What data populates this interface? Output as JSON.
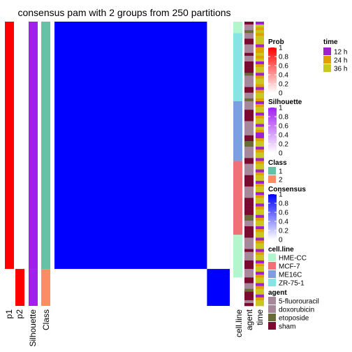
{
  "title": "consensus pam with 2 groups from 250 partitions",
  "columns": {
    "p1": "p1",
    "p2": "p2",
    "silhouette": "Silhouette",
    "class": "Class",
    "cell_line": "cell.line",
    "agent": "agent",
    "time": "time"
  },
  "legends": {
    "prob": {
      "title": "Prob",
      "ticks": [
        "1",
        "0.8",
        "0.6",
        "0.4",
        "0.2",
        "0"
      ],
      "low_color": "#ffffff",
      "high_color": "#ff0000"
    },
    "silhouette": {
      "title": "Silhouette",
      "ticks": [
        "1",
        "0.8",
        "0.6",
        "0.4",
        "0.2",
        "0"
      ],
      "low_color": "#ffffff",
      "high_color": "#a020f0"
    },
    "class": {
      "title": "Class",
      "items": [
        {
          "label": "1",
          "color": "#66c2a5"
        },
        {
          "label": "2",
          "color": "#fc8d62"
        }
      ]
    },
    "consensus": {
      "title": "Consensus",
      "ticks": [
        "1",
        "0.8",
        "0.6",
        "0.4",
        "0.2",
        "0"
      ],
      "low_color": "#ffffff",
      "high_color": "#0000ff"
    },
    "cell_line": {
      "title": "cell.line",
      "items": [
        {
          "label": "HME-CC",
          "color": "#b3f5cc"
        },
        {
          "label": "MCF-7",
          "color": "#f07078"
        },
        {
          "label": "ME16C",
          "color": "#7b9fe0"
        },
        {
          "label": "ZR-75-1",
          "color": "#88e4e4"
        }
      ]
    },
    "agent": {
      "title": "agent",
      "items": [
        {
          "label": "5-fluorouracil",
          "color": "#a6889a"
        },
        {
          "label": "doxorubicin",
          "color": "#a6889a"
        },
        {
          "label": "etoposide",
          "color": "#6b6b3a"
        },
        {
          "label": "sham",
          "color": "#7a0a30"
        }
      ]
    },
    "time": {
      "title": "time",
      "items": [
        {
          "label": "12 h",
          "color": "#a020d0"
        },
        {
          "label": "24 h",
          "color": "#e0a000"
        },
        {
          "label": "36 h",
          "color": "#c8c820"
        }
      ]
    }
  },
  "chart_data": {
    "type": "heatmap",
    "title": "consensus pam with 2 groups from 250 partitions",
    "k": 2,
    "partitions": 250,
    "n_samples": 100,
    "class_sizes": {
      "1": 87,
      "2": 13
    },
    "sample_order_classes": "87 samples of class 1 followed by 13 samples of class 2",
    "p1_class1": 1.0,
    "p1_class2": 0.0,
    "p2_class1": 0.0,
    "p2_class2": 1.0,
    "silhouette_value": 1.0,
    "consensus_within_class1": 1.0,
    "consensus_within_class2": 1.0,
    "consensus_between_classes": 0.0,
    "cell_line_segments": [
      {
        "value": "HME-CC",
        "count": 4
      },
      {
        "value": "ZR-75-1",
        "count": 24
      },
      {
        "value": "ME16C",
        "count": 21
      },
      {
        "value": "MCF-7",
        "count": 26
      },
      {
        "value": "HME-CC",
        "count": 15
      }
    ],
    "agent_sequence": [
      "sham",
      "5-fluorouracil",
      "5-fluorouracil",
      "etoposide",
      "5-fluorouracil",
      "5-fluorouracil",
      "sham",
      "sham",
      "5-fluorouracil",
      "5-fluorouracil",
      "5-fluorouracil",
      "sham",
      "5-fluorouracil",
      "5-fluorouracil",
      "sham",
      "sham",
      "sham",
      "sham",
      "etoposide",
      "5-fluorouracil",
      "5-fluorouracil",
      "5-fluorouracil",
      "5-fluorouracil",
      "sham",
      "sham",
      "5-fluorouracil",
      "5-fluorouracil",
      "etoposide",
      "5-fluorouracil",
      "5-fluorouracil",
      "5-fluorouracil",
      "sham",
      "sham",
      "sham",
      "sham",
      "5-fluorouracil",
      "5-fluorouracil",
      "5-fluorouracil",
      "5-fluorouracil",
      "5-fluorouracil",
      "sham",
      "sham",
      "etoposide",
      "etoposide",
      "5-fluorouracil",
      "5-fluorouracil",
      "5-fluorouracil",
      "5-fluorouracil",
      "sham",
      "sham",
      "5-fluorouracil",
      "5-fluorouracil",
      "5-fluorouracil",
      "5-fluorouracil",
      "sham",
      "sham",
      "sham",
      "sham",
      "5-fluorouracil",
      "5-fluorouracil",
      "5-fluorouracil",
      "5-fluorouracil",
      "sham",
      "sham",
      "sham",
      "sham",
      "sham",
      "sham",
      "etoposide",
      "etoposide",
      "5-fluorouracil",
      "5-fluorouracil",
      "sham",
      "sham",
      "sham",
      "sham",
      "5-fluorouracil",
      "5-fluorouracil",
      "5-fluorouracil",
      "5-fluorouracil",
      "sham",
      "5-fluorouracil",
      "5-fluorouracil",
      "5-fluorouracil",
      "sham",
      "sham",
      "sham",
      "5-fluorouracil",
      "5-fluorouracil",
      "5-fluorouracil",
      "sham",
      "sham",
      "5-fluorouracil",
      "5-fluorouracil",
      "etoposide",
      "sham",
      "sham",
      "sham",
      "5-fluorouracil",
      "sham"
    ],
    "time_sequence": [
      "12 h",
      "36 h",
      "24 h",
      "36 h",
      "24 h",
      "36 h",
      "36 h",
      "36 h",
      "12 h",
      "24 h",
      "24 h",
      "36 h",
      "24 h",
      "36 h",
      "12 h",
      "24 h",
      "36 h",
      "36 h",
      "12 h",
      "24 h",
      "36 h",
      "36 h",
      "24 h",
      "12 h",
      "24 h",
      "36 h",
      "36 h",
      "24 h",
      "12 h",
      "24 h",
      "36 h",
      "36 h",
      "12 h",
      "24 h",
      "36 h",
      "36 h",
      "12 h",
      "36 h",
      "24 h",
      "12 h",
      "12 h",
      "24 h",
      "36 h",
      "36 h",
      "12 h",
      "24 h",
      "36 h",
      "36 h",
      "12 h",
      "24 h",
      "36 h",
      "36 h",
      "12 h",
      "24 h",
      "36 h",
      "36 h",
      "12 h",
      "24 h",
      "36 h",
      "36 h",
      "12 h",
      "24 h",
      "36 h",
      "36 h",
      "12 h",
      "24 h",
      "36 h",
      "36 h",
      "12 h",
      "24 h",
      "36 h",
      "36 h",
      "12 h",
      "24 h",
      "36 h",
      "36 h",
      "12 h",
      "24 h",
      "36 h",
      "36 h",
      "12 h",
      "24 h",
      "36 h",
      "36 h",
      "12 h",
      "24 h",
      "36 h",
      "36 h",
      "12 h",
      "24 h",
      "36 h",
      "36 h",
      "12 h",
      "24 h",
      "36 h",
      "36 h",
      "12 h",
      "24 h",
      "36 h",
      "36 h"
    ]
  }
}
